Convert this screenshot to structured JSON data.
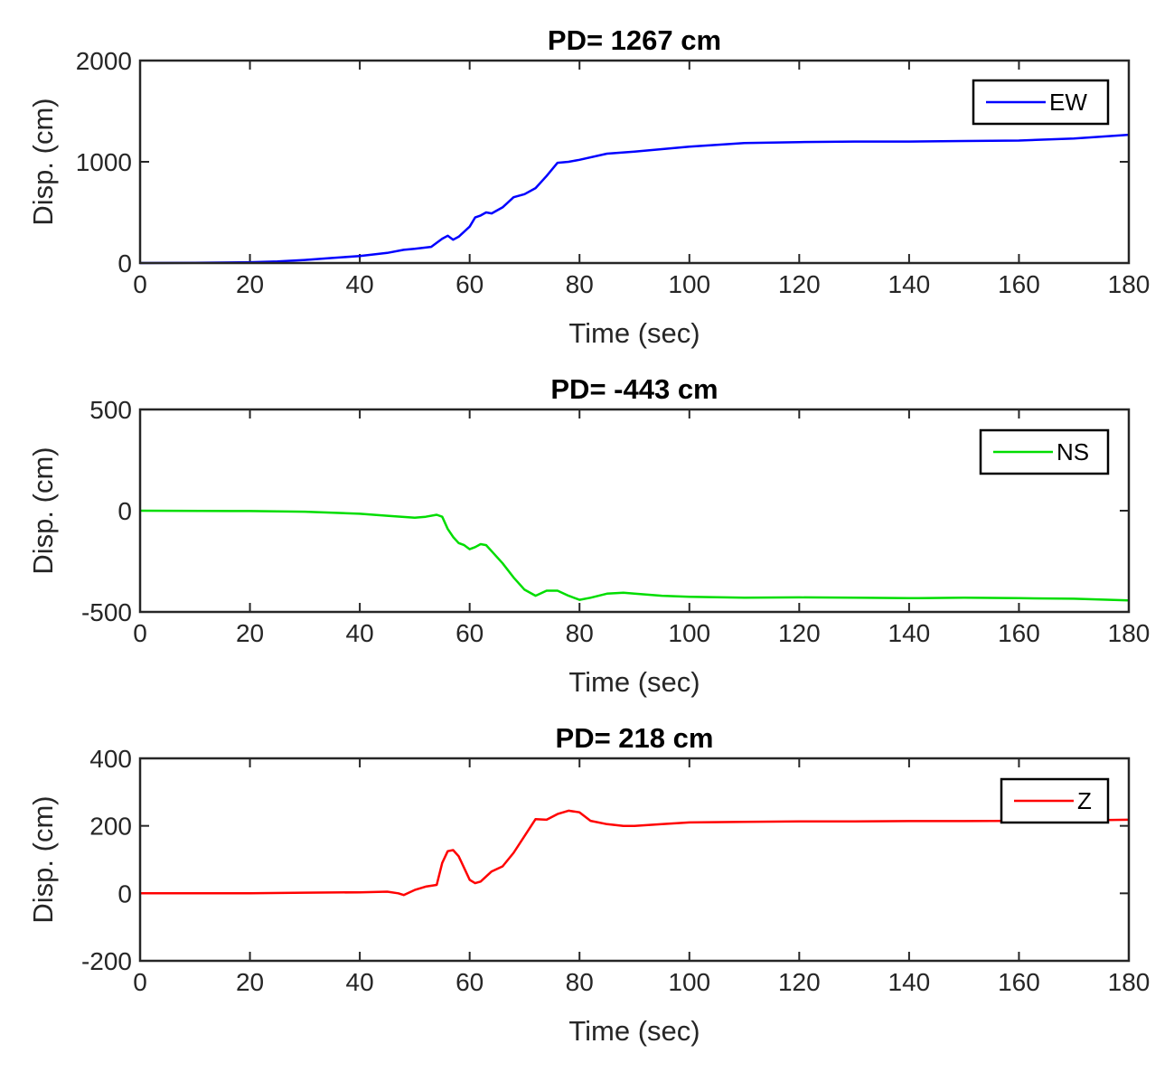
{
  "chart_data": [
    {
      "type": "line",
      "title": "PD= 1267 cm",
      "xlabel": "Time (sec)",
      "ylabel": "Disp. (cm)",
      "xlim": [
        0,
        180
      ],
      "ylim": [
        0,
        2000
      ],
      "xticks": [
        "0",
        "20",
        "40",
        "60",
        "80",
        "100",
        "120",
        "140",
        "160",
        "180"
      ],
      "yticks": [
        "0",
        "1000",
        "2000"
      ],
      "legend_position": "top-right",
      "grid": false,
      "series": [
        {
          "name": "EW",
          "color": "#0000ff",
          "x": [
            0,
            10,
            20,
            25,
            30,
            35,
            40,
            45,
            48,
            50,
            53,
            55,
            56,
            57,
            58,
            60,
            61,
            62,
            63,
            64,
            66,
            68,
            70,
            72,
            74,
            76,
            78,
            80,
            85,
            90,
            100,
            110,
            120,
            130,
            140,
            150,
            160,
            170,
            180
          ],
          "y": [
            0,
            2,
            8,
            15,
            30,
            50,
            70,
            100,
            130,
            140,
            160,
            240,
            270,
            230,
            260,
            360,
            450,
            470,
            500,
            490,
            550,
            650,
            680,
            740,
            860,
            990,
            1000,
            1020,
            1080,
            1100,
            1150,
            1185,
            1195,
            1200,
            1200,
            1205,
            1210,
            1230,
            1267
          ]
        }
      ]
    },
    {
      "type": "line",
      "title": "PD= -443 cm",
      "xlabel": "Time (sec)",
      "ylabel": "Disp. (cm)",
      "xlim": [
        0,
        180
      ],
      "ylim": [
        -500,
        500
      ],
      "xticks": [
        "0",
        "20",
        "40",
        "60",
        "80",
        "100",
        "120",
        "140",
        "160",
        "180"
      ],
      "yticks": [
        "-500",
        "0",
        "500"
      ],
      "legend_position": "top-right",
      "grid": false,
      "series": [
        {
          "name": "NS",
          "color": "#00dd00",
          "x": [
            0,
            20,
            30,
            40,
            45,
            50,
            52,
            54,
            55,
            56,
            57,
            58,
            59,
            60,
            61,
            62,
            63,
            64,
            66,
            68,
            70,
            72,
            74,
            76,
            78,
            80,
            82,
            85,
            88,
            90,
            95,
            100,
            110,
            120,
            130,
            140,
            150,
            160,
            170,
            180
          ],
          "y": [
            0,
            -2,
            -5,
            -15,
            -25,
            -35,
            -30,
            -20,
            -30,
            -90,
            -130,
            -160,
            -170,
            -190,
            -180,
            -165,
            -170,
            -200,
            -260,
            -330,
            -390,
            -420,
            -395,
            -395,
            -420,
            -440,
            -430,
            -410,
            -405,
            -410,
            -420,
            -425,
            -430,
            -428,
            -430,
            -432,
            -430,
            -432,
            -435,
            -443
          ]
        }
      ]
    },
    {
      "type": "line",
      "title": "PD= 218 cm",
      "xlabel": "Time (sec)",
      "ylabel": "Disp. (cm)",
      "xlim": [
        0,
        180
      ],
      "ylim": [
        -200,
        400
      ],
      "xticks": [
        "0",
        "20",
        "40",
        "60",
        "80",
        "100",
        "120",
        "140",
        "160",
        "180"
      ],
      "yticks": [
        "-200",
        "0",
        "200",
        "400"
      ],
      "legend_position": "top-right",
      "grid": false,
      "series": [
        {
          "name": "Z",
          "color": "#ff0000",
          "x": [
            0,
            20,
            30,
            40,
            45,
            47,
            48,
            50,
            52,
            54,
            55,
            56,
            57,
            58,
            59,
            60,
            61,
            62,
            63,
            64,
            66,
            68,
            70,
            72,
            74,
            76,
            78,
            80,
            82,
            85,
            88,
            90,
            95,
            100,
            110,
            120,
            130,
            140,
            150,
            160,
            170,
            180
          ],
          "y": [
            0,
            0,
            2,
            3,
            5,
            0,
            -5,
            10,
            20,
            25,
            90,
            125,
            128,
            110,
            75,
            40,
            30,
            35,
            50,
            65,
            80,
            120,
            170,
            220,
            218,
            235,
            245,
            240,
            215,
            205,
            200,
            200,
            205,
            210,
            212,
            213,
            213,
            214,
            214,
            215,
            216,
            218
          ]
        }
      ]
    }
  ]
}
